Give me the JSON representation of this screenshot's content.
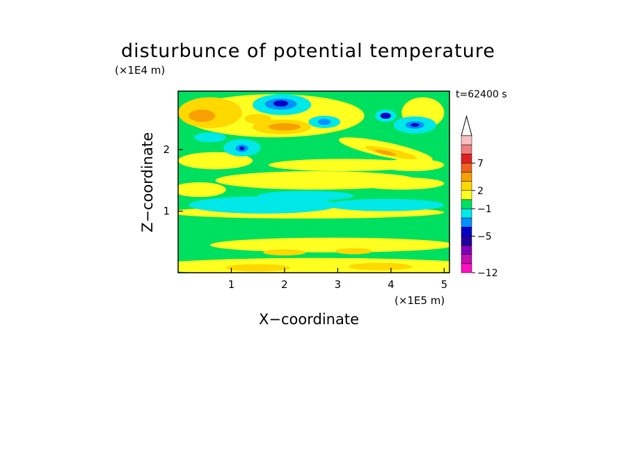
{
  "chart_data": {
    "type": "heatmap",
    "title": "disturbunce of potential temperature",
    "time_label": "t=62400 s",
    "xlabel": "X−coordinate",
    "ylabel": "Z−coordinate",
    "x_unit": "(×1E5 m)",
    "y_unit": "(×1E4 m)",
    "xlim": [
      0,
      5.1
    ],
    "ylim": [
      0,
      2.95
    ],
    "xticks": [
      "1",
      "2",
      "3",
      "4",
      "5"
    ],
    "yticks": [
      "1",
      "2"
    ],
    "colorbar": {
      "extend": "max",
      "tick_labels": [
        "7",
        "2",
        "−1",
        "−5",
        "−12"
      ],
      "colors_top_to_bottom": [
        "#f8c0c0",
        "#f08080",
        "#e02020",
        "#f06020",
        "#f8a000",
        "#ffd800",
        "#ffff20",
        "#00e060",
        "#00e8e8",
        "#0090ff",
        "#0000c8",
        "#2000a0",
        "#8000b8",
        "#c010b0",
        "#ff10c0"
      ]
    },
    "level_colors": {
      "near_zero_negative": "#00e060",
      "near_zero_positive": "#ffff20",
      "weak_positive": "#ffd800",
      "moderate_positive": "#f8a000",
      "weak_negative": "#00e8e8",
      "moderate_negative": "#0090ff",
      "strong_negative": "#0000c8"
    }
  }
}
